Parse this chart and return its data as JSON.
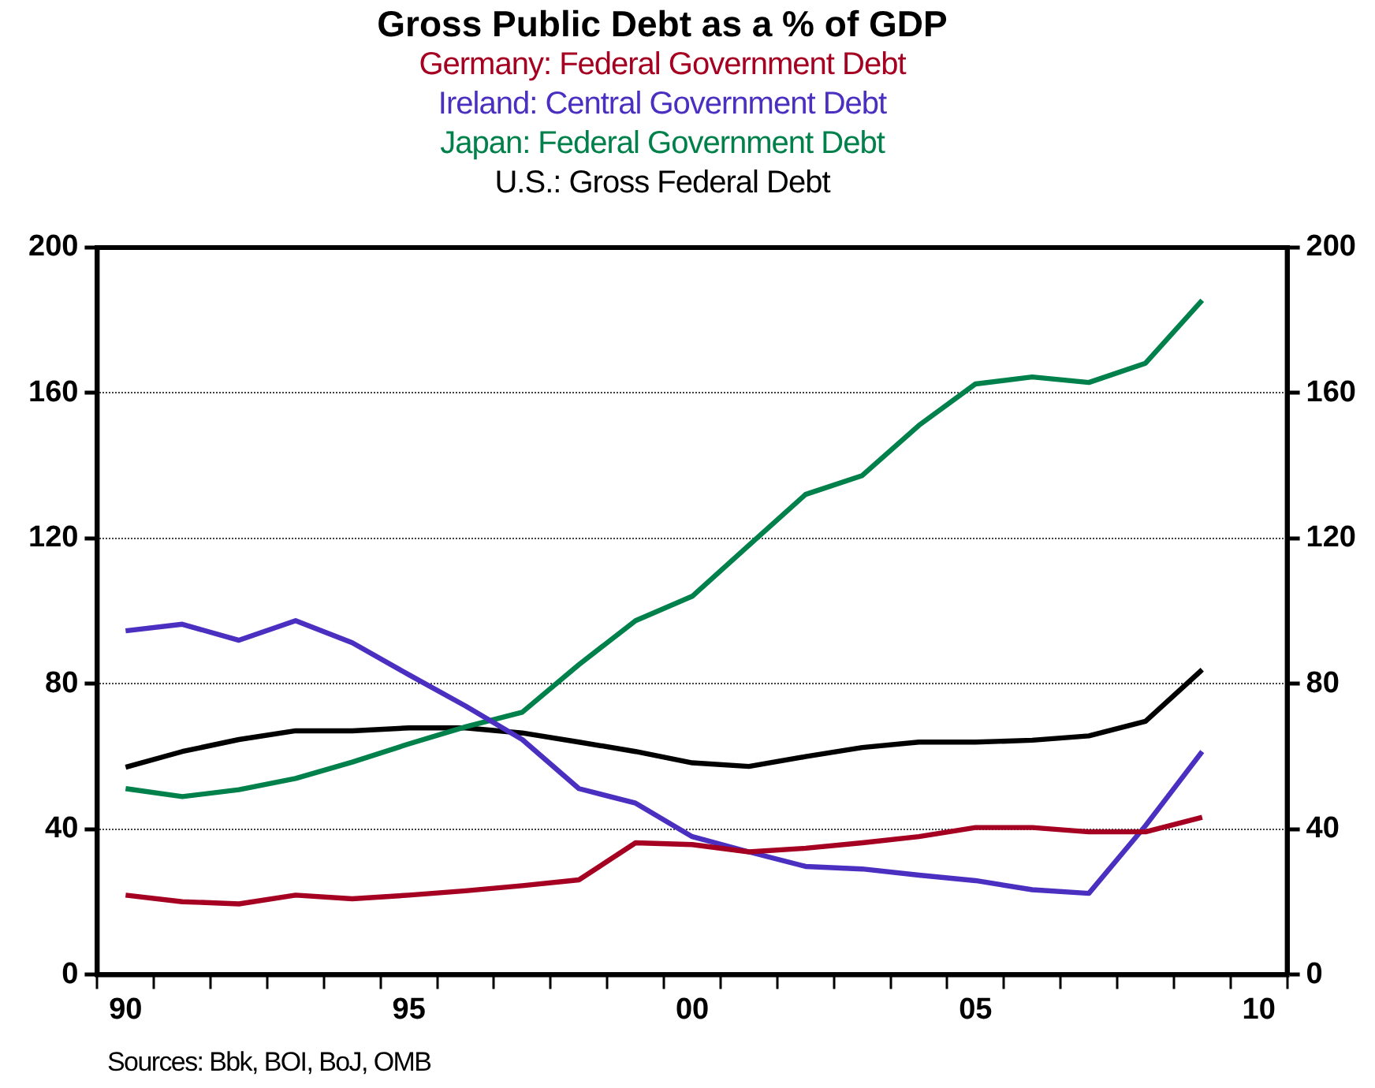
{
  "chart_data": {
    "type": "line",
    "title": "Gross Public Debt as a % of GDP",
    "legend": "top",
    "categories": [
      "90",
      null,
      null,
      null,
      null,
      "95",
      null,
      null,
      null,
      null,
      "00",
      null,
      null,
      null,
      null,
      "05",
      null,
      null,
      null,
      null,
      "10"
    ],
    "ylim": [
      0,
      200
    ],
    "yticks": [
      0,
      40,
      80,
      120,
      160,
      200
    ],
    "y2lim": [
      0,
      200
    ],
    "y2ticks": [
      0,
      40,
      80,
      120,
      160,
      200
    ],
    "grid": "y",
    "series": [
      {
        "name": "Germany: Federal Government Debt",
        "color": "#a50021",
        "values": [
          21.9,
          20.1,
          19.5,
          21.9,
          20.9,
          21.9,
          23.1,
          24.5,
          26.1,
          36.3,
          35.8,
          33.8,
          34.8,
          36.3,
          38.0,
          40.5,
          40.5,
          39.3,
          39.3,
          43.3,
          null
        ]
      },
      {
        "name": "Ireland: Central Government Debt",
        "color": "#4a2fc0",
        "values": [
          94.6,
          96.4,
          92.0,
          97.4,
          91.3,
          82.5,
          73.9,
          64.7,
          51.2,
          47.2,
          38.0,
          33.8,
          29.8,
          29.1,
          27.4,
          25.9,
          23.4,
          22.4,
          41.0,
          61.4,
          null
        ]
      },
      {
        "name": "Japan: Federal Government Debt",
        "color": "#00804a",
        "values": [
          51.2,
          49.0,
          50.9,
          54.0,
          58.5,
          63.5,
          68.2,
          72.2,
          85.3,
          97.4,
          104.1,
          118.1,
          132.1,
          137.3,
          151.1,
          162.5,
          164.4,
          162.9,
          168.2,
          185.5,
          null
        ]
      },
      {
        "name": "U.S.: Gross Federal Debt",
        "color": "#000000",
        "values": [
          57.1,
          61.4,
          64.7,
          67.1,
          67.1,
          67.9,
          67.9,
          66.5,
          64.0,
          61.4,
          58.3,
          57.3,
          60.0,
          62.5,
          64.0,
          64.0,
          64.5,
          65.7,
          69.7,
          83.9,
          null
        ]
      }
    ],
    "annotations": [
      "Sources:  Bbk, BOI, BoJ, OMB"
    ]
  }
}
